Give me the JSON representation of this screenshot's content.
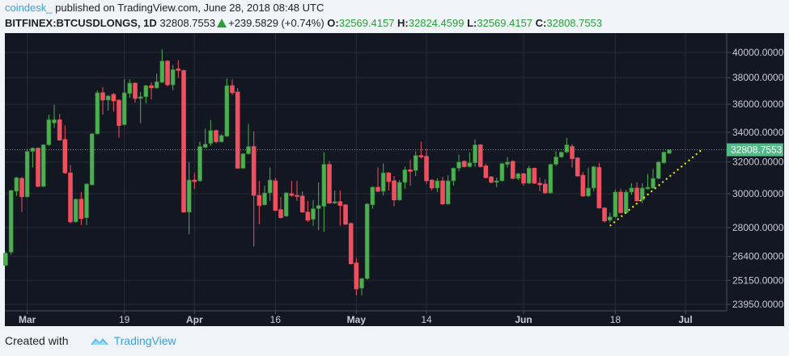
{
  "header": {
    "author": "coindesk_",
    "published": "published on TradingView.com, June 28, 2018 08:48 UTC",
    "symbol": "BITFINEX:BTCUSDLONGS, 1D",
    "last": "32808.7553",
    "change": "+239.5829 (+0.74%)",
    "o_label": "O:",
    "o": "32569.4157",
    "h_label": "H:",
    "h": "32824.4599",
    "l_label": "L:",
    "l": "32569.4157",
    "c_label": "C:",
    "c": "32808.7553",
    "change_icon": "triangle-up-icon"
  },
  "footer": {
    "created_with": "Created with",
    "brand": "TradingView",
    "logo_icon": "tradingview-cloud-icon"
  },
  "colors": {
    "background": "#131722",
    "up": "#4caf50",
    "down": "#ef5060",
    "grid": "#262b38",
    "last_price": "#53b987",
    "trendline": "#f5f500",
    "text_link": "#37a3dc"
  },
  "chart_data": {
    "type": "candlestick",
    "title": "",
    "xlabel": "",
    "ylabel": "",
    "y_scale": "log",
    "ylim": [
      23700,
      40600
    ],
    "grid": true,
    "first_date": "2018-02-25",
    "last_date": "2018-06-28",
    "y_ticks": [
      "40000.0000",
      "38000.0000",
      "36000.0000",
      "34000.0000",
      "32000.0000",
      "30000.0000",
      "28000.0000",
      "26400.0000",
      "25150.0000",
      "23950.0000"
    ],
    "x_ticks": [
      {
        "label": "Mar",
        "date": "2018-03-01",
        "bold": true
      },
      {
        "label": "19",
        "date": "2018-03-19",
        "bold": false
      },
      {
        "label": "Apr",
        "date": "2018-04-01",
        "bold": true
      },
      {
        "label": "16",
        "date": "2018-04-16",
        "bold": false
      },
      {
        "label": "May",
        "date": "2018-05-01",
        "bold": true
      },
      {
        "label": "14",
        "date": "2018-05-14",
        "bold": false
      },
      {
        "label": "Jun",
        "date": "2018-06-01",
        "bold": true
      },
      {
        "label": "18",
        "date": "2018-06-18",
        "bold": false
      },
      {
        "label": "Jul",
        "date": "2018-07-01",
        "bold": true
      }
    ],
    "last_price_label": "32808.7553",
    "trendline": {
      "style": "dotted",
      "start": [
        "2018-06-17",
        28100
      ],
      "end": [
        "2018-07-04",
        32800
      ]
    },
    "ohlc_columns": [
      "open",
      "high",
      "low",
      "close"
    ],
    "ohlc": [
      [
        25930,
        26670,
        25880,
        26580
      ],
      [
        26630,
        30250,
        26490,
        30200
      ],
      [
        30150,
        31050,
        29860,
        31000
      ],
      [
        30950,
        31050,
        28900,
        29810
      ],
      [
        29810,
        32870,
        29760,
        32700
      ],
      [
        32700,
        32970,
        31650,
        32920
      ],
      [
        32920,
        32970,
        30400,
        30450
      ],
      [
        30450,
        33190,
        30400,
        33140
      ],
      [
        33140,
        35240,
        33080,
        34880
      ],
      [
        34650,
        35940,
        34290,
        34880
      ],
      [
        34880,
        35300,
        33410,
        33460
      ],
      [
        33510,
        34470,
        31250,
        31300
      ],
      [
        31300,
        31800,
        28240,
        28330
      ],
      [
        28330,
        29710,
        28290,
        29670
      ],
      [
        29670,
        30100,
        28140,
        28520
      ],
      [
        28570,
        30650,
        28140,
        30600
      ],
      [
        30550,
        33950,
        30500,
        33890
      ],
      [
        33890,
        37030,
        33840,
        36850
      ],
      [
        36850,
        37270,
        35240,
        36300
      ],
      [
        36300,
        36670,
        35530,
        36610
      ],
      [
        36730,
        36850,
        35470,
        36240
      ],
      [
        36300,
        36360,
        33620,
        34470
      ],
      [
        34530,
        37880,
        34470,
        36850
      ],
      [
        36790,
        37880,
        36480,
        37580
      ],
      [
        37580,
        37640,
        36120,
        36420
      ],
      [
        36420,
        36910,
        34650,
        36550
      ],
      [
        36550,
        37450,
        36060,
        37390
      ],
      [
        37390,
        37640,
        36360,
        37210
      ],
      [
        37210,
        38310,
        37150,
        37690
      ],
      [
        37640,
        40250,
        37580,
        39310
      ],
      [
        39310,
        39380,
        37330,
        37450
      ],
      [
        37450,
        39000,
        37030,
        38630
      ],
      [
        38690,
        39380,
        38000,
        38560
      ],
      [
        38560,
        38630,
        28860,
        28900
      ],
      [
        28900,
        32000,
        27630,
        30850
      ],
      [
        30850,
        31300,
        30300,
        30750
      ],
      [
        30800,
        33350,
        30750,
        33030
      ],
      [
        32970,
        34240,
        32920,
        33190
      ],
      [
        33240,
        34880,
        33080,
        34120
      ],
      [
        34120,
        34180,
        33240,
        33350
      ],
      [
        33350,
        33890,
        33300,
        33780
      ],
      [
        33730,
        37940,
        33680,
        37390
      ],
      [
        37390,
        37880,
        36670,
        36850
      ],
      [
        36910,
        37210,
        31550,
        31600
      ],
      [
        31600,
        32600,
        31550,
        32540
      ],
      [
        32540,
        34590,
        32490,
        33030
      ],
      [
        33030,
        34060,
        26950,
        29900
      ],
      [
        29900,
        30800,
        28190,
        29290
      ],
      [
        29330,
        30500,
        29290,
        30050
      ],
      [
        30050,
        31650,
        29570,
        30850
      ],
      [
        30800,
        31000,
        28950,
        29000
      ],
      [
        29050,
        29810,
        28520,
        28570
      ],
      [
        28660,
        30100,
        28620,
        30050
      ],
      [
        30000,
        30800,
        29810,
        29900
      ],
      [
        29900,
        30800,
        29570,
        29860
      ],
      [
        29860,
        30150,
        28860,
        28900
      ],
      [
        28900,
        29570,
        28330,
        28430
      ],
      [
        28480,
        29620,
        28100,
        29100
      ],
      [
        29100,
        30700,
        27860,
        29290
      ],
      [
        29240,
        32650,
        27770,
        31850
      ],
      [
        31850,
        32050,
        29380,
        29430
      ],
      [
        29430,
        30200,
        29380,
        29520
      ],
      [
        29520,
        30200,
        28100,
        29290
      ],
      [
        29330,
        29380,
        28140,
        28190
      ],
      [
        28240,
        28290,
        25970,
        26010
      ],
      [
        26060,
        26310,
        24390,
        24710
      ],
      [
        24750,
        25280,
        24390,
        25240
      ],
      [
        25240,
        29430,
        25190,
        29380
      ],
      [
        29330,
        30450,
        29100,
        30400
      ],
      [
        30400,
        31650,
        30100,
        30150
      ],
      [
        30150,
        31900,
        29900,
        31300
      ],
      [
        31300,
        31350,
        30200,
        30750
      ],
      [
        30800,
        31100,
        29240,
        29620
      ],
      [
        29620,
        30850,
        29570,
        30700
      ],
      [
        30700,
        31700,
        30300,
        31500
      ],
      [
        31500,
        32160,
        30500,
        31400
      ],
      [
        31450,
        32700,
        31100,
        32430
      ],
      [
        32430,
        33350,
        32220,
        32330
      ],
      [
        32380,
        32870,
        30600,
        30800
      ],
      [
        30850,
        30900,
        30200,
        30350
      ],
      [
        30350,
        30950,
        30100,
        30800
      ],
      [
        30800,
        31050,
        29330,
        29380
      ],
      [
        29380,
        31150,
        29330,
        30800
      ],
      [
        30800,
        31650,
        30500,
        31600
      ],
      [
        31600,
        32490,
        31400,
        32000
      ],
      [
        32050,
        32110,
        31650,
        31700
      ],
      [
        31700,
        32650,
        31650,
        31950
      ],
      [
        31950,
        33510,
        31700,
        33140
      ],
      [
        33140,
        33190,
        31650,
        31700
      ],
      [
        31750,
        31900,
        30950,
        31000
      ],
      [
        31050,
        31100,
        30650,
        30700
      ],
      [
        30700,
        31000,
        30400,
        30800
      ],
      [
        30800,
        31950,
        30750,
        31900
      ],
      [
        31850,
        32330,
        31650,
        32000
      ],
      [
        32050,
        32110,
        30900,
        30950
      ],
      [
        30950,
        31300,
        30850,
        31250
      ],
      [
        31250,
        31300,
        30500,
        30650
      ],
      [
        30650,
        31750,
        30600,
        31600
      ],
      [
        31600,
        31650,
        30600,
        30650
      ],
      [
        30650,
        31000,
        30150,
        30550
      ],
      [
        30600,
        30900,
        30000,
        30050
      ],
      [
        30050,
        31900,
        30000,
        31850
      ],
      [
        31850,
        32700,
        31750,
        32330
      ],
      [
        32330,
        32700,
        32270,
        32650
      ],
      [
        32650,
        33620,
        32600,
        33140
      ],
      [
        33030,
        33190,
        31650,
        32220
      ],
      [
        32270,
        32330,
        31050,
        31100
      ],
      [
        31150,
        31350,
        29810,
        29860
      ],
      [
        29860,
        31650,
        29810,
        30350
      ],
      [
        30350,
        31750,
        30150,
        31700
      ],
      [
        31650,
        31950,
        29100,
        29140
      ],
      [
        29140,
        29190,
        28290,
        28380
      ],
      [
        28430,
        28860,
        28290,
        28620
      ],
      [
        28620,
        30250,
        28570,
        30100
      ],
      [
        30100,
        30300,
        28810,
        28860
      ],
      [
        28860,
        30250,
        28810,
        30100
      ],
      [
        30100,
        30650,
        29950,
        30350
      ],
      [
        30350,
        30700,
        29520,
        29570
      ],
      [
        29620,
        30650,
        29430,
        30350
      ],
      [
        30300,
        31250,
        30250,
        30400
      ],
      [
        30350,
        31550,
        30300,
        30950
      ],
      [
        30950,
        32050,
        30900,
        32000
      ],
      [
        31950,
        32700,
        31900,
        32650
      ],
      [
        32569.4157,
        32824.4599,
        32569.4157,
        32808.7553
      ]
    ]
  }
}
